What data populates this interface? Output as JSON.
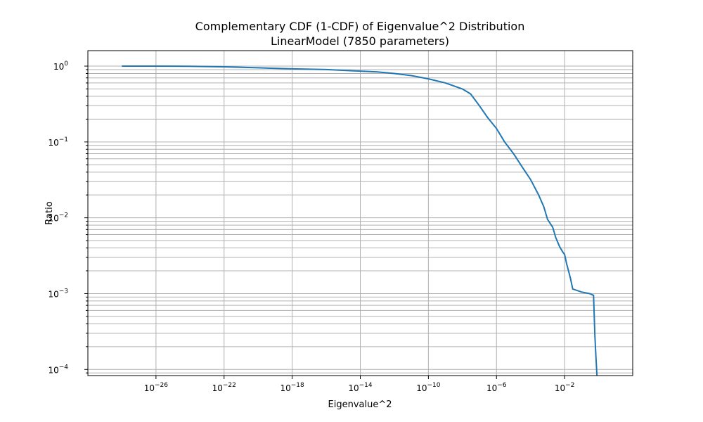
{
  "chart_data": {
    "type": "line",
    "title": "Complementary CDF (1-CDF) of Eigenvalue^2 Distribution",
    "subtitle": "LinearModel (7850 parameters)",
    "xlabel": "Eigenvalue^2",
    "ylabel": "Ratio",
    "xscale": "log",
    "yscale": "log",
    "xlim": [
      1e-30,
      100.0
    ],
    "ylim": [
      8.3e-05,
      1.6
    ],
    "grid": true,
    "line_color": "#1f77b4",
    "x_ticks": [
      {
        "value": 1e-26,
        "base": "10",
        "exp": "−26"
      },
      {
        "value": 1e-22,
        "base": "10",
        "exp": "−22"
      },
      {
        "value": 1e-18,
        "base": "10",
        "exp": "−18"
      },
      {
        "value": 1e-14,
        "base": "10",
        "exp": "−14"
      },
      {
        "value": 1e-10,
        "base": "10",
        "exp": "−10"
      },
      {
        "value": 1e-06,
        "base": "10",
        "exp": "−6"
      },
      {
        "value": 0.01,
        "base": "10",
        "exp": "−2"
      }
    ],
    "y_ticks": [
      {
        "value": 1,
        "base": "10",
        "exp": "0"
      },
      {
        "value": 0.1,
        "base": "10",
        "exp": "−1"
      },
      {
        "value": 0.01,
        "base": "10",
        "exp": "−2"
      },
      {
        "value": 0.001,
        "base": "10",
        "exp": "−3"
      },
      {
        "value": 0.0001,
        "base": "10",
        "exp": "−4"
      }
    ],
    "series": [
      {
        "x": [
          1e-28,
          1e-26,
          1e-24,
          1e-22,
          1e-20,
          1e-18,
          1e-16,
          1e-14,
          1e-13,
          1e-12,
          1e-11,
          1e-10,
          1e-09,
          1e-08,
          3e-08,
          1e-07,
          3e-07,
          1e-06,
          3e-06,
          1e-05,
          3e-05,
          0.0001,
          0.0003,
          0.0006,
          0.001,
          0.002,
          0.003,
          0.005,
          0.008,
          0.01,
          0.013,
          0.018,
          0.022,
          0.03,
          0.1,
          0.3,
          0.5,
          0.6,
          0.7,
          0.8
        ],
        "y": [
          1.0,
          1.0,
          0.995,
          0.98,
          0.95,
          0.92,
          0.9,
          0.86,
          0.84,
          0.8,
          0.75,
          0.68,
          0.6,
          0.5,
          0.43,
          0.3,
          0.21,
          0.15,
          0.1,
          0.07,
          0.048,
          0.032,
          0.02,
          0.014,
          0.0095,
          0.0075,
          0.0055,
          0.0042,
          0.0035,
          0.0033,
          0.0025,
          0.0019,
          0.0016,
          0.00115,
          0.00105,
          0.001,
          0.00095,
          0.00028,
          0.00014,
          8.2e-05
        ]
      }
    ]
  }
}
